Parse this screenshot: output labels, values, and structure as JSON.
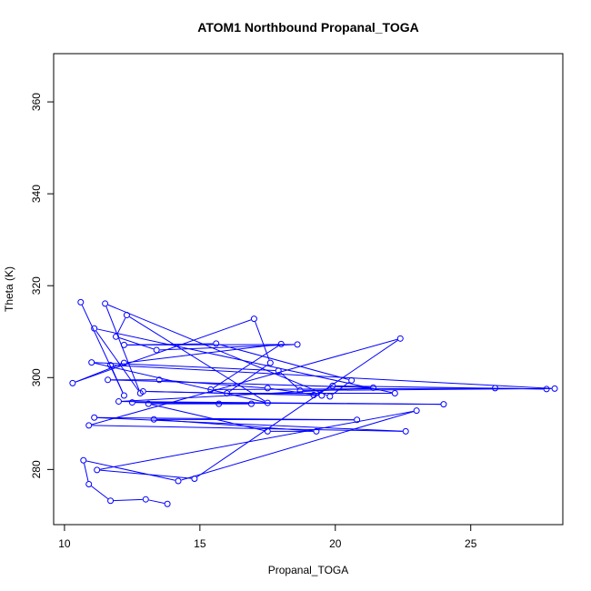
{
  "chart_data": {
    "type": "line",
    "title": "ATOM1 Northbound Propanal_TOGA",
    "xlabel": "Propanal_TOGA",
    "ylabel": "Theta (K)",
    "xlim": [
      9.6,
      28.4
    ],
    "ylim": [
      268.0,
      370.5
    ],
    "xticks": [
      10,
      15,
      20,
      25
    ],
    "yticks": [
      280,
      300,
      320,
      340,
      360
    ],
    "series_color": "#0000ff",
    "marker": "open-circle",
    "grid": false,
    "x": [
      13.8,
      13.0,
      11.7,
      10.9,
      10.7,
      14.2,
      23.0,
      11.2,
      14.8,
      22.4,
      10.9,
      22.6,
      11.1,
      20.8,
      13.3,
      19.3,
      17.5,
      13.1,
      16.9,
      15.7,
      12.5,
      24.0,
      12.0,
      21.4,
      11.6,
      13.5,
      17.5,
      19.5,
      12.9,
      19.2,
      19.9,
      27.8,
      25.9,
      15.4,
      18.0,
      12.2,
      10.3,
      17.0,
      17.6,
      16.0,
      22.2,
      11.1,
      12.8,
      11.5,
      19.8,
      20.6,
      15.6,
      12.2,
      18.6,
      13.4,
      11.9,
      12.3,
      17.5,
      11.0,
      17.9,
      18.7,
      28.1,
      11.7,
      12.2,
      10.6
    ],
    "y": [
      272.5,
      273.5,
      273.2,
      276.8,
      282.0,
      277.5,
      292.8,
      279.9,
      278.0,
      308.5,
      289.6,
      288.3,
      291.3,
      290.8,
      290.9,
      288.3,
      288.3,
      294.3,
      294.3,
      294.3,
      294.6,
      294.2,
      294.8,
      297.8,
      299.5,
      299.5,
      297.7,
      296.1,
      297.0,
      296.2,
      298.2,
      297.5,
      297.7,
      297.4,
      307.3,
      303.2,
      298.8,
      312.8,
      303.2,
      296.6,
      296.6,
      310.7,
      296.6,
      316.1,
      295.9,
      299.4,
      307.4,
      307.1,
      307.2,
      306.0,
      308.9,
      313.6,
      294.5,
      303.3,
      301.5,
      297.2,
      297.6,
      302.7,
      296.1,
      316.4
    ]
  }
}
